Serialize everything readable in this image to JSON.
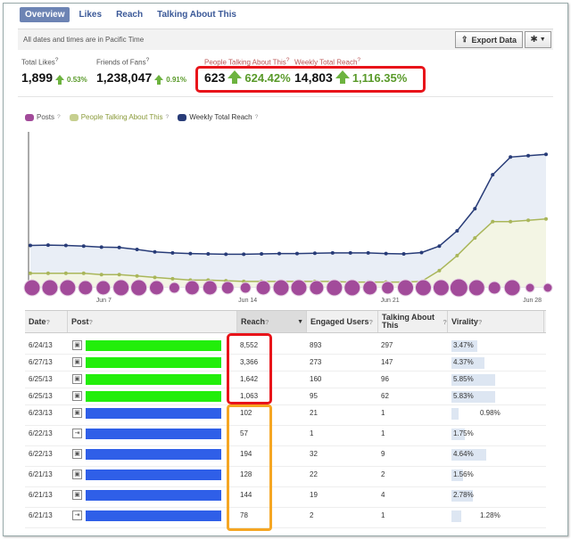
{
  "tabs": [
    {
      "label": "Overview",
      "active": true
    },
    {
      "label": "Likes",
      "active": false
    },
    {
      "label": "Reach",
      "active": false
    },
    {
      "label": "Talking About This",
      "active": false
    }
  ],
  "toolbar": {
    "timezone_note": "All dates and times are in Pacific Time",
    "export_label": "Export Data"
  },
  "stats": {
    "total_likes": {
      "label": "Total Likes",
      "value": "1,899",
      "change": "0.53%"
    },
    "friends_of_fans": {
      "label": "Friends of Fans",
      "value": "1,238,047",
      "change": "0.91%"
    },
    "talking_about": {
      "label": "People Talking About This",
      "value": "623",
      "change": "624.42%"
    },
    "weekly_reach": {
      "label": "Weekly Total Reach",
      "value": "14,803",
      "change": "1,116.35%"
    }
  },
  "legend": {
    "posts": {
      "label": "Posts",
      "color": "#a24b9a"
    },
    "talking": {
      "label": "People Talking About This",
      "color": "#a9b65a"
    },
    "reach": {
      "label": "Weekly Total Reach",
      "color": "#283c78"
    }
  },
  "chart_data": {
    "type": "line",
    "x_ticks": [
      "Jun 7",
      "Jun 14",
      "Jun 21",
      "Jun 28"
    ],
    "series": [
      {
        "name": "Weekly Total Reach",
        "values": [
          1220,
          1230,
          1220,
          1200,
          1170,
          1160,
          1100,
          1030,
          1000,
          980,
          970,
          960,
          960,
          970,
          980,
          980,
          990,
          1000,
          1000,
          1000,
          980,
          970,
          1010,
          1200,
          1650,
          2300,
          3300,
          3820,
          3860,
          3900
        ]
      },
      {
        "name": "People Talking About This",
        "values": [
          100,
          100,
          100,
          100,
          90,
          90,
          80,
          70,
          60,
          50,
          50,
          45,
          40,
          40,
          40,
          40,
          40,
          40,
          35,
          35,
          35,
          35,
          40,
          120,
          230,
          360,
          480,
          480,
          490,
          500
        ]
      },
      {
        "name": "Posts",
        "values": [
          1,
          1,
          1,
          1,
          1,
          1,
          1,
          1,
          1,
          1,
          1,
          1,
          1,
          1,
          1,
          1,
          1,
          1,
          1,
          1,
          1,
          1,
          1,
          1,
          1,
          1,
          1,
          1,
          1,
          1
        ]
      }
    ]
  },
  "table": {
    "headers": [
      "Date",
      "Post",
      "Reach",
      "Engaged Users",
      "Talking About This",
      "Virality"
    ],
    "rows": [
      {
        "date": "6/24/13",
        "reach": "8,552",
        "engaged": "893",
        "talking": "297",
        "virality": "3.47%",
        "vir_value": 3.47,
        "bar_color": "#22ee0a",
        "icon": "▣"
      },
      {
        "date": "6/27/13",
        "reach": "3,366",
        "engaged": "273",
        "talking": "147",
        "virality": "4.37%",
        "vir_value": 4.37,
        "bar_color": "#22ee0a",
        "icon": "▣"
      },
      {
        "date": "6/25/13",
        "reach": "1,642",
        "engaged": "160",
        "talking": "96",
        "virality": "5.85%",
        "vir_value": 5.85,
        "bar_color": "#22ee0a",
        "icon": "▣"
      },
      {
        "date": "6/25/13",
        "reach": "1,063",
        "engaged": "95",
        "talking": "62",
        "virality": "5.83%",
        "vir_value": 5.83,
        "bar_color": "#22ee0a",
        "icon": "▣"
      },
      {
        "date": "6/23/13",
        "reach": "102",
        "engaged": "21",
        "talking": "1",
        "virality": "0.98%",
        "vir_value": 0.98,
        "bar_color": "#2f5fe8",
        "icon": "▣"
      },
      {
        "date": "6/22/13",
        "reach": "57",
        "engaged": "1",
        "talking": "1",
        "virality": "1.75%",
        "vir_value": 1.75,
        "bar_color": "#2f5fe8",
        "icon": "⇥"
      },
      {
        "date": "6/22/13",
        "reach": "194",
        "engaged": "32",
        "talking": "9",
        "virality": "4.64%",
        "vir_value": 4.64,
        "bar_color": "#2f5fe8",
        "icon": "▣"
      },
      {
        "date": "6/21/13",
        "reach": "128",
        "engaged": "22",
        "talking": "2",
        "virality": "1.56%",
        "vir_value": 1.56,
        "bar_color": "#2f5fe8",
        "icon": "▣"
      },
      {
        "date": "6/21/13",
        "reach": "144",
        "engaged": "19",
        "talking": "4",
        "virality": "2.78%",
        "vir_value": 2.78,
        "bar_color": "#2f5fe8",
        "icon": "▣"
      },
      {
        "date": "6/21/13",
        "reach": "78",
        "engaged": "2",
        "talking": "1",
        "virality": "1.28%",
        "vir_value": 1.28,
        "bar_color": "#2f5fe8",
        "icon": "⇥"
      }
    ]
  }
}
